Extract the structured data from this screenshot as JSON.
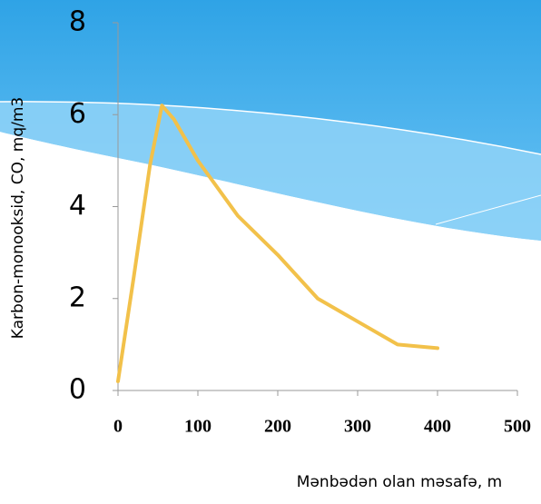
{
  "chart_data": {
    "type": "line",
    "xlabel": "Mənbədən olan məsafə, m",
    "ylabel": "Karbon-monooksid, CO, mq/m3",
    "series": [
      {
        "color": "#f2c14a",
        "x": [
          0,
          20,
          40,
          55,
          70,
          100,
          150,
          200,
          250,
          300,
          350,
          400
        ],
        "values": [
          0.2,
          2.5,
          4.9,
          6.2,
          5.9,
          5.0,
          3.8,
          2.95,
          2.0,
          1.5,
          1.0,
          0.92
        ]
      }
    ],
    "xlim": [
      0,
      500
    ],
    "xticks": [
      0,
      100,
      200,
      300,
      400,
      500
    ],
    "ylim": [
      0,
      8
    ],
    "yticks": [
      0,
      2,
      4,
      6,
      8
    ]
  }
}
